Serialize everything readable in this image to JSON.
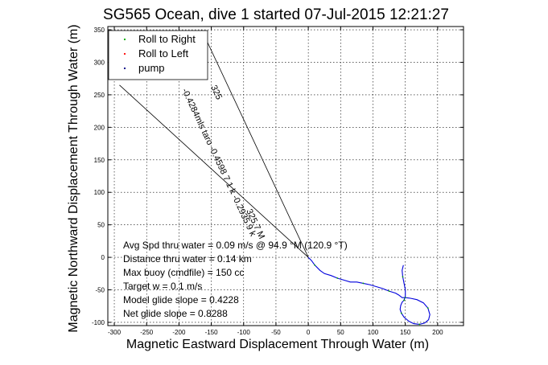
{
  "chart_data": {
    "type": "line",
    "title": "SG565 Ocean, dive 1 started 07-Jul-2015 12:21:27",
    "xlabel": "Magnetic Eastward Displacement Through Water (m)",
    "ylabel": "Magnetic Northward Displacement Through Water (m)",
    "xlim": [
      -310,
      240
    ],
    "ylim": [
      -105,
      355
    ],
    "xticks": [
      -300,
      -250,
      -200,
      -150,
      -100,
      -50,
      0,
      50,
      100,
      150,
      200
    ],
    "yticks": [
      -100,
      -50,
      0,
      50,
      100,
      150,
      200,
      250,
      300,
      350
    ],
    "grid": true,
    "legend": {
      "placement": "top-left",
      "entries": [
        {
          "label": "Roll to Right",
          "color": "#00aa00"
        },
        {
          "label": "Roll to Left",
          "color": "#ff0000"
        },
        {
          "label": "pump",
          "color": "#000080"
        }
      ]
    },
    "track": {
      "color": "#0000dd",
      "x": [
        0,
        5,
        10,
        18,
        25,
        35,
        45,
        55,
        65,
        75,
        85,
        95,
        105,
        115,
        125,
        135,
        140,
        145,
        150,
        158,
        168,
        178,
        185,
        188,
        186,
        180,
        172,
        163,
        155,
        148,
        144,
        142,
        143,
        145,
        148,
        150,
        150,
        148,
        146,
        145,
        147
      ],
      "y": [
        0,
        -5,
        -12,
        -20,
        -25,
        -28,
        -32,
        -35,
        -38,
        -38,
        -40,
        -42,
        -45,
        -48,
        -52,
        -55,
        -58,
        -62,
        -62,
        -63,
        -65,
        -70,
        -78,
        -88,
        -96,
        -101,
        -103,
        -102,
        -98,
        -92,
        -86,
        -80,
        -74,
        -69,
        -66,
        -60,
        -50,
        -40,
        -30,
        -20,
        -12
      ]
    },
    "guide_lines": [
      {
        "x": [
          0,
          -165
        ],
        "y": [
          0,
          350
        ]
      },
      {
        "x": [
          0,
          -292
        ],
        "y": [
          0,
          265
        ]
      }
    ],
    "slant_labels": [
      {
        "text": "-0.4284mls taro -0.4598 7 1 k -0.2935 9 k",
        "angle_deg": 64.8
      },
      {
        "text": "325",
        "angle_deg": 64.8
      },
      {
        "text": "325.7 M",
        "angle_deg": 64.8
      }
    ],
    "annotations": [
      "Avg Spd thru water =  0.09 m/s @  94.9   °M (120.9 °T)",
      "Distance thru water =  0.14 km",
      "Max buoy (cmdfile) = 150 cc",
      "Target w = 0.1 m/s",
      "Model glide slope = 0.4228",
      "Net glide slope = 0.8288"
    ]
  }
}
